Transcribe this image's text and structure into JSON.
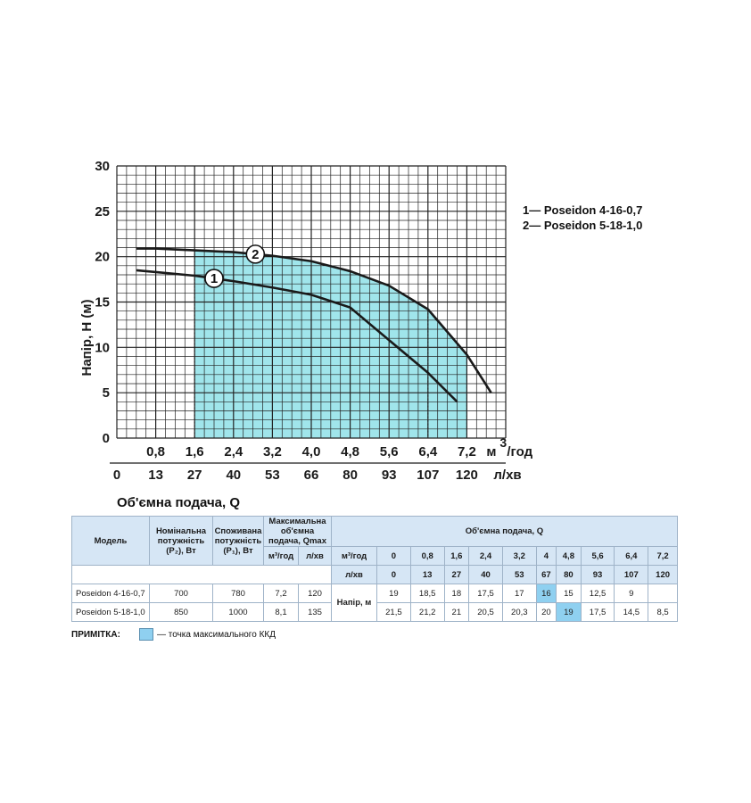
{
  "chart_data": {
    "type": "line",
    "y_axis_title": "Напір, Н (м)",
    "y_ticks": [
      "0",
      "5",
      "10",
      "15",
      "20",
      "25",
      "30"
    ],
    "ylim": [
      0,
      30
    ],
    "x_ticks_m3h": [
      "0,8",
      "1,6",
      "2,4",
      "3,2",
      "4,0",
      "4,8",
      "5,6",
      "6,4",
      "7,2"
    ],
    "x_unit_m3h_base": "м",
    "x_unit_m3h_sup": "3",
    "x_unit_m3h_tail": "/год",
    "x_ticks_lmin": [
      "0",
      "13",
      "27",
      "40",
      "53",
      "66",
      "80",
      "93",
      "107",
      "120"
    ],
    "x_unit_lmin": "л/хв",
    "x_title": "Об'ємна подача, Q",
    "xlim": [
      0,
      8.0
    ],
    "grid": true,
    "series": [
      {
        "name": "Poseidon 4-16-0,7",
        "marker": "1",
        "legend_text": "1— Poseidon 4-16-0,7",
        "x": [
          0.4,
          0.8,
          1.6,
          2.4,
          3.2,
          4.0,
          4.8,
          5.6,
          6.4,
          7.0
        ],
        "y": [
          18.5,
          18.3,
          17.9,
          17.3,
          16.6,
          15.8,
          14.4,
          10.8,
          7.2,
          4.0
        ],
        "color": "#1a1a1a"
      },
      {
        "name": "Poseidon 5-18-1,0",
        "marker": "2",
        "legend_text": "2— Poseidon 5-18-1,0",
        "x": [
          0.4,
          0.8,
          1.6,
          2.4,
          3.2,
          4.0,
          4.8,
          5.6,
          6.4,
          7.2,
          7.7
        ],
        "y": [
          20.9,
          20.9,
          20.7,
          20.5,
          20.1,
          19.5,
          18.4,
          16.8,
          14.2,
          9.2,
          5.0
        ],
        "color": "#1a1a1a"
      }
    ],
    "efficiency_band_color": "#8fe0e8",
    "efficiency_band_x": [
      1.6,
      7.2
    ],
    "efficiency_band_x_second": [
      6.4,
      7.2
    ]
  },
  "table": {
    "h_model": "Модель",
    "h_p2": "Номінальна потужність (P₂), Вт",
    "h_p1": "Споживана потужність (P₁), Вт",
    "h_qmax": "Максимальна об'ємна подача, Qmax",
    "h_qmax_m3": "м³/год",
    "h_qmax_l": "л/хв",
    "h_q": "Об'ємна подача, Q",
    "h_row_m3": "м³/год",
    "h_row_l": "л/хв",
    "h_head": "Напір, м",
    "q_m3": [
      "0",
      "0,8",
      "1,6",
      "2,4",
      "3,2",
      "4",
      "4,8",
      "5,6",
      "6,4",
      "7,2"
    ],
    "q_l": [
      "0",
      "13",
      "27",
      "40",
      "53",
      "67",
      "80",
      "93",
      "107",
      "120"
    ],
    "rows": [
      {
        "model": "Poseidon 4-16-0,7",
        "p2": "700",
        "p1": "780",
        "qmax_m3": "7,2",
        "qmax_l": "120",
        "head": [
          "19",
          "18,5",
          "18",
          "17,5",
          "17",
          "16",
          "15",
          "12,5",
          "9",
          ""
        ],
        "hl": 5
      },
      {
        "model": "Poseidon 5-18-1,0",
        "p2": "850",
        "p1": "1000",
        "qmax_m3": "8,1",
        "qmax_l": "135",
        "head": [
          "21,5",
          "21,2",
          "21",
          "20,5",
          "20,3",
          "20",
          "19",
          "17,5",
          "14,5",
          "8,5"
        ],
        "hl": 6
      }
    ]
  },
  "note": {
    "label": "ПРИМІТКА:",
    "text": "— точка максимального ККД",
    "color": "#8fd0f0"
  }
}
